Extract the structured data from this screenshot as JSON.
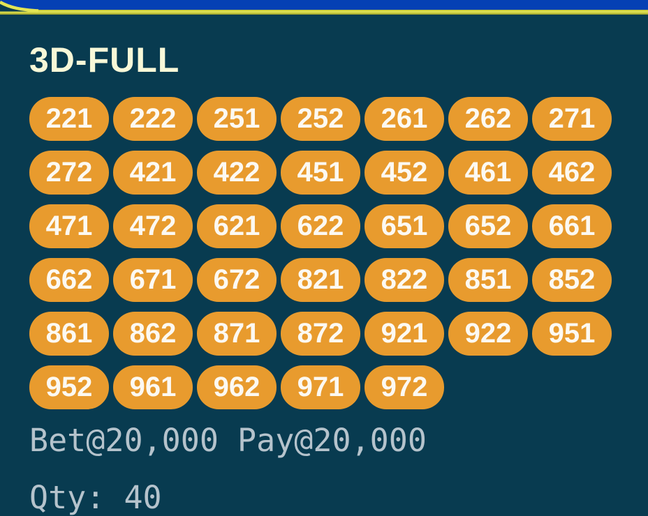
{
  "title": "3D-FULL",
  "numbers": [
    "221",
    "222",
    "251",
    "252",
    "261",
    "262",
    "271",
    "272",
    "421",
    "422",
    "451",
    "452",
    "461",
    "462",
    "471",
    "472",
    "621",
    "622",
    "651",
    "652",
    "661",
    "662",
    "671",
    "672",
    "821",
    "822",
    "851",
    "852",
    "861",
    "862",
    "871",
    "872",
    "921",
    "922",
    "951",
    "952",
    "961",
    "962",
    "971",
    "972"
  ],
  "summary": {
    "bet_line": "Bet@20,000 Pay@20,000",
    "qty_line": "Qty: 40"
  },
  "colors": {
    "background": "#083B50",
    "header_blue": "#0540B4",
    "header_yellow": "#E3E454",
    "pill_orange": "#E89B2E",
    "pill_text": "#FCF9F2",
    "title_cream": "#F8F8D8",
    "summary_text": "#B5C3CC"
  }
}
